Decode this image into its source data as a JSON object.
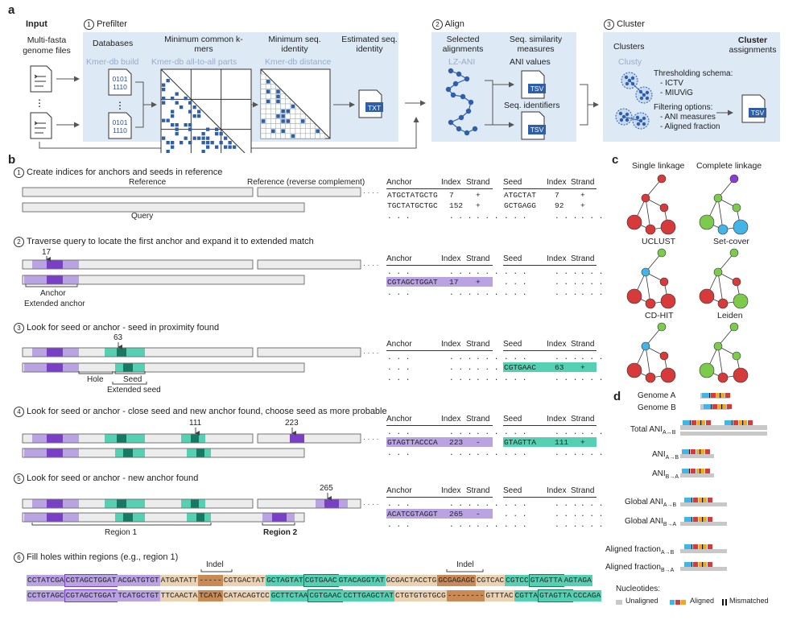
{
  "panel_a": {
    "letter": "a",
    "input_title": "Input",
    "input_files_label": "Multi-fasta genome files",
    "prefilter": {
      "number": "1",
      "title": "Prefilter",
      "databases": "Databases",
      "min_kmers": "Minimum common k-mers",
      "min_identity": "Minimum seq. identity",
      "est_identity": "Estimated seq. identity",
      "kmer_build": "Kmer-db build",
      "kmer_all": "Kmer-db all-to-all parts",
      "kmer_distance": "Kmer-db distance",
      "binary_top": "0101",
      "binary_bottom": "1110",
      "ellipsis": "⋮",
      "txt": "TXT"
    },
    "align": {
      "number": "2",
      "title": "Align",
      "selected": "Selected alignments",
      "measures": "Seq. similarity measures",
      "tool": "LZ-ANI",
      "ani_values": "ANI values",
      "seq_identifiers": "Seq. identifiers",
      "tsv": "TSV"
    },
    "cluster": {
      "number": "3",
      "title": "Cluster",
      "clusters": "Clusters",
      "assignments_bold": "Cluster",
      "assignments": "assignments",
      "tool": "Clusty",
      "thresholding": "Thresholding schema:",
      "ictv": "- ICTV",
      "miuvig": "- MIUViG",
      "filtering": "Filtering options:",
      "ani_measures": "- ANI measures",
      "aligned_fraction": "- Aligned fraction",
      "tsv": "TSV"
    }
  },
  "panel_b": {
    "letter": "b",
    "steps": [
      {
        "num": "1",
        "text": "Create indices for anchors and seeds in reference"
      },
      {
        "num": "2",
        "text": "Traverse query to locate the first anchor and expand it to extended match"
      },
      {
        "num": "3",
        "text": "Look for seed or anchor - seed in proximity found"
      },
      {
        "num": "4",
        "text": "Look for seed or anchor - close seed and new anchor found, choose seed as more probable"
      },
      {
        "num": "5",
        "text": "Look for seed or anchor - new anchor found"
      },
      {
        "num": "6",
        "text": "Fill holes within regions (e.g., region 1)"
      }
    ],
    "reference": "Reference",
    "reference_rc": "Reference (reverse complement)",
    "query": "Query",
    "dots": "· · · ·",
    "pos17": "17",
    "pos63": "63",
    "pos111": "111",
    "pos223": "223",
    "pos265": "265",
    "anchor": "Anchor",
    "extended_anchor": "Extended anchor",
    "hole": "Hole",
    "seed": "Seed",
    "extended_seed": "Extended seed",
    "region1": "Region 1",
    "region2": "Region 2",
    "indel": "Indel",
    "col_anchor": "Anchor",
    "col_seed": "Seed",
    "col_index": "Index",
    "col_strand": "Strand",
    "ell": ". . .",
    "t1_anchor": [
      [
        "ATGCTATGCTG",
        "7",
        "+"
      ],
      [
        "TGCTATGCTGC",
        "152",
        "+"
      ]
    ],
    "t1_seed": [
      [
        "ATGCTAT",
        "7",
        "+"
      ],
      [
        "GCTGAGG",
        "92",
        "+"
      ]
    ],
    "t2_anchor": [
      "CGTAGCTGGAT",
      "17",
      "+"
    ],
    "t3_seed": [
      "CGTGAAC",
      "63",
      "+"
    ],
    "t4_anchor": [
      "GTAGTTACCCA",
      "223",
      "-"
    ],
    "t4_seed": [
      "GTAGTTA",
      "111",
      "+"
    ],
    "t5_anchor": [
      "ACATCGTAGGT",
      "265",
      "-"
    ],
    "seq_top": [
      {
        "t": "CCTATCGA",
        "c": "p"
      },
      {
        "t": "CGTAGCTGGAT",
        "c": "pb"
      },
      {
        "t": "ACGATGTGT",
        "c": "p"
      },
      {
        "t": "ATGATATT",
        "c": "b"
      },
      {
        "t": "-----",
        "c": "o"
      },
      {
        "t": "CGTGACTAT",
        "c": "b"
      },
      {
        "t": "GCTAGTAT",
        "c": "t"
      },
      {
        "t": "CGTGAAC",
        "c": "tb"
      },
      {
        "t": "GTACAGGTAT",
        "c": "t"
      },
      {
        "t": "GCGACTACCTG",
        "c": "b"
      },
      {
        "t": "GCGAGAGC",
        "c": "o"
      },
      {
        "t": "CGTCAC",
        "c": "b"
      },
      {
        "t": "CGTCC",
        "c": "t"
      },
      {
        "t": "GTAGTTA",
        "c": "tb"
      },
      {
        "t": "AGTAGA",
        "c": "t"
      }
    ],
    "seq_bottom": [
      {
        "t": "CCTGTAGC",
        "c": "p"
      },
      {
        "t": "CGTAGCTGGAT",
        "c": "pb"
      },
      {
        "t": "TCATGCTGT",
        "c": "p"
      },
      {
        "t": "TTCAACTA",
        "c": "b"
      },
      {
        "t": "TCATA",
        "c": "o"
      },
      {
        "t": "CATACAGTCC",
        "c": "b"
      },
      {
        "t": "GCTTCTAA",
        "c": "t"
      },
      {
        "t": "CGTGAAC",
        "c": "tb"
      },
      {
        "t": "CCTTGAGCTAT",
        "c": "t"
      },
      {
        "t": "CTGTGTGTGCG",
        "c": "b"
      },
      {
        "t": "--------",
        "c": "o"
      },
      {
        "t": "GTTTAC",
        "c": "b"
      },
      {
        "t": "CGTTA",
        "c": "t"
      },
      {
        "t": "GTAGTTA",
        "c": "tb"
      },
      {
        "t": "CCCAGA",
        "c": "t"
      }
    ]
  },
  "panel_c": {
    "letter": "c",
    "methods": [
      "Single linkage",
      "Complete linkage",
      "UCLUST",
      "Set-cover",
      "CD-HIT",
      "Leiden"
    ]
  },
  "panel_d": {
    "letter": "d",
    "genome_a": "Genome A",
    "genome_b": "Genome B",
    "total_ani": "Total ANI",
    "ani": "ANI",
    "global_ani": "Global ANI",
    "aligned_fraction": "Aligned fraction",
    "sub_ab": "A↔B",
    "sub_a_b": "A→B",
    "sub_b_a": "B→A",
    "nucleotides": "Nucleotides:",
    "unaligned": "Unaligned",
    "aligned": "Aligned",
    "mismatched": "Mismatched"
  },
  "colors": {
    "panel_bg": "#dde9f5",
    "purple": "#7a3fc7",
    "purple_light": "#b9a3e3",
    "teal": "#56d0b3",
    "teal_dark": "#167a63",
    "orange": "#c98a56",
    "beige": "#ead2b3",
    "red_node": "#d63a3a",
    "green_node": "#7dcb4c",
    "blue_node": "#42b4e6",
    "violet_node": "#8a3ecf",
    "navy": "#2f4f8f"
  }
}
